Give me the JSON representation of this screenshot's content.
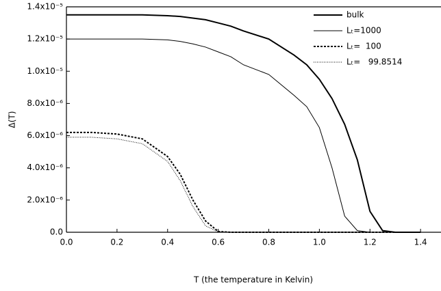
{
  "chart_data": {
    "type": "line",
    "xlabel": "T (the temperature in Kelvin)",
    "ylabel": "Δ(T)",
    "x": [
      0,
      0.1,
      0.2,
      0.3,
      0.4,
      0.45,
      0.5,
      0.55,
      0.6,
      0.65,
      0.7,
      0.8,
      0.9,
      0.95,
      1.0,
      1.05,
      1.1,
      1.15,
      1.2,
      1.25,
      1.3,
      1.35,
      1.4
    ],
    "series": [
      {
        "name": "bulk",
        "color": "#000000",
        "width": 2,
        "dash": "none",
        "values": [
          1.35e-05,
          1.35e-05,
          1.35e-05,
          1.35e-05,
          1.345e-05,
          1.34e-05,
          1.33e-05,
          1.32e-05,
          1.3e-05,
          1.28e-05,
          1.25e-05,
          1.2e-05,
          1.1e-05,
          1.04e-05,
          9.5e-06,
          8.3e-06,
          6.7e-06,
          4.5e-06,
          1.3e-06,
          1e-07,
          0,
          0,
          0
        ]
      },
      {
        "name": "Lₜ=1000",
        "color": "#000000",
        "width": 1,
        "dash": "none",
        "values": [
          1.2e-05,
          1.2e-05,
          1.2e-05,
          1.2e-05,
          1.195e-05,
          1.185e-05,
          1.17e-05,
          1.15e-05,
          1.12e-05,
          1.09e-05,
          1.04e-05,
          9.8e-06,
          8.5e-06,
          7.8e-06,
          6.5e-06,
          4e-06,
          1e-06,
          1e-07,
          0,
          0,
          0,
          0,
          0
        ]
      },
      {
        "name": "Lₜ=  100",
        "color": "#000000",
        "width": 2,
        "dash": "3,2",
        "values": [
          6.2e-06,
          6.2e-06,
          6.1e-06,
          5.8e-06,
          4.7e-06,
          3.6e-06,
          2e-06,
          7e-07,
          5e-08,
          0,
          0,
          0,
          0,
          0,
          0,
          0,
          0,
          0,
          0,
          0,
          0,
          0,
          0
        ]
      },
      {
        "name": "Lₜ=   99.8514",
        "color": "#000000",
        "width": 1,
        "dash": "1,1.5",
        "values": [
          5.9e-06,
          5.9e-06,
          5.8e-06,
          5.5e-06,
          4.4e-06,
          3.2e-06,
          1.6e-06,
          4e-07,
          2e-08,
          0,
          0,
          0,
          0,
          0,
          0,
          0,
          0,
          0,
          0,
          0,
          0,
          0,
          0
        ]
      }
    ],
    "xlim": [
      0,
      1.47
    ],
    "ylim": [
      0,
      1.4e-05
    ],
    "xticks": [
      {
        "value": 0,
        "label": "0.0"
      },
      0.2,
      0.4,
      0.6,
      0.8,
      {
        "value": 1,
        "label": "1.0"
      },
      1.2,
      1.4
    ],
    "yticks": [
      {
        "value": 0,
        "label": "0.0"
      },
      {
        "value": 2e-06,
        "label": "2.0x10⁻⁶"
      },
      {
        "value": 4e-06,
        "label": "4.0x10⁻⁶"
      },
      {
        "value": 6e-06,
        "label": "6.0x10⁻⁶"
      },
      {
        "value": 8e-06,
        "label": "8.0x10⁻⁶"
      },
      {
        "value": 1e-05,
        "label": "1.0x10⁻⁵"
      },
      {
        "value": 1.2e-05,
        "label": "1.2x10⁻⁵"
      },
      {
        "value": 1.4e-05,
        "label": "1.4x10⁻⁵"
      }
    ],
    "legend": "upper right"
  }
}
